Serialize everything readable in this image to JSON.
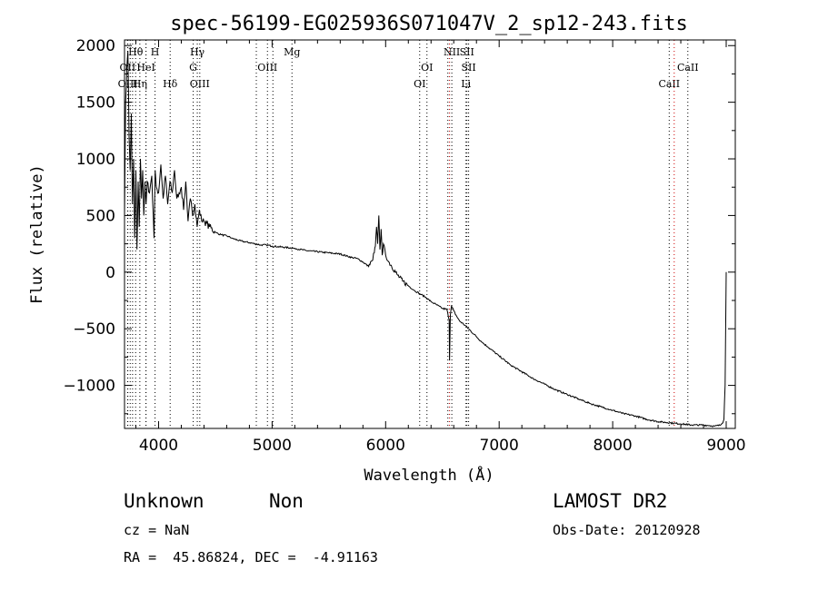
{
  "chart_data": {
    "type": "line",
    "title": "spec-56199-EG025936S071047V_2_sp12-243.fits",
    "xlabel": "Wavelength (Å)",
    "ylabel": "Flux (relative)",
    "xlim": [
      3700,
      9080
    ],
    "ylim": [
      -1380,
      2050
    ],
    "xticks": [
      4000,
      5000,
      6000,
      7000,
      8000,
      9000
    ],
    "yticks": [
      -1000,
      -500,
      0,
      500,
      1000,
      1500,
      2000
    ],
    "grid": false,
    "legend": "none",
    "series": [
      {
        "color": "#000000",
        "x": [
          3700,
          3710,
          3720,
          3730,
          3740,
          3750,
          3760,
          3770,
          3780,
          3790,
          3800,
          3810,
          3820,
          3830,
          3840,
          3850,
          3860,
          3870,
          3880,
          3890,
          3900,
          3920,
          3940,
          3960,
          3970,
          3980,
          4000,
          4020,
          4040,
          4060,
          4080,
          4100,
          4120,
          4140,
          4160,
          4180,
          4200,
          4220,
          4240,
          4260,
          4280,
          4300,
          4320,
          4340,
          4360,
          4380,
          4400,
          4450,
          4500,
          4550,
          4600,
          4650,
          4700,
          4750,
          4800,
          4850,
          4900,
          4950,
          5000,
          5100,
          5200,
          5300,
          5400,
          5500,
          5600,
          5700,
          5750,
          5800,
          5850,
          5880,
          5900,
          5910,
          5920,
          5930,
          5940,
          5950,
          5960,
          5970,
          5980,
          6000,
          6020,
          6050,
          6100,
          6150,
          6200,
          6250,
          6300,
          6350,
          6400,
          6450,
          6500,
          6540,
          6550,
          6560,
          6563,
          6570,
          6580,
          6600,
          6620,
          6650,
          6700,
          6750,
          6800,
          6850,
          6900,
          6950,
          7000,
          7100,
          7200,
          7300,
          7400,
          7500,
          7600,
          7700,
          7800,
          7900,
          8000,
          8100,
          8200,
          8300,
          8400,
          8500,
          8600,
          8700,
          8800,
          8850,
          8900,
          8950,
          8970,
          8980,
          8990,
          9000
        ],
        "y": [
          500,
          1500,
          1800,
          1950,
          1200,
          900,
          1400,
          600,
          1000,
          300,
          900,
          200,
          800,
          400,
          1000,
          650,
          900,
          500,
          800,
          600,
          800,
          700,
          850,
          300,
          900,
          750,
          700,
          950,
          650,
          850,
          600,
          800,
          700,
          900,
          650,
          700,
          750,
          550,
          800,
          450,
          650,
          500,
          600,
          400,
          550,
          450,
          450,
          400,
          350,
          330,
          320,
          300,
          280,
          270,
          260,
          250,
          240,
          240,
          230,
          220,
          210,
          190,
          180,
          170,
          160,
          130,
          120,
          90,
          50,
          100,
          170,
          230,
          400,
          250,
          500,
          200,
          380,
          150,
          250,
          150,
          100,
          60,
          -20,
          -80,
          -120,
          -160,
          -190,
          -220,
          -260,
          -290,
          -320,
          -330,
          -380,
          -420,
          -780,
          -380,
          -300,
          -340,
          -380,
          -430,
          -470,
          -520,
          -570,
          -620,
          -660,
          -700,
          -740,
          -820,
          -880,
          -940,
          -990,
          -1040,
          -1080,
          -1120,
          -1160,
          -1190,
          -1220,
          -1250,
          -1270,
          -1300,
          -1320,
          -1330,
          -1340,
          -1350,
          -1350,
          -1355,
          -1360,
          -1350,
          -1330,
          -1300,
          -1000,
          0
        ]
      }
    ],
    "spectral_lines": [
      {
        "label": "Hθ",
        "x": 3798,
        "color": "#000000",
        "row": 1
      },
      {
        "label": "H",
        "x": 3969,
        "color": "#000000",
        "row": 1
      },
      {
        "label": "Hγ",
        "x": 4341,
        "color": "#000000",
        "row": 1
      },
      {
        "label": "Mg",
        "x": 5175,
        "color": "#000000",
        "row": 1
      },
      {
        "label": "NII",
        "x": 6583,
        "color": "#000000",
        "row": 1
      },
      {
        "label": "SII",
        "x": 6716,
        "color": "#000000",
        "row": 1
      },
      {
        "label": "OII",
        "x": 3727,
        "color": "#000000",
        "row": 2
      },
      {
        "label": "HeI",
        "x": 3889,
        "color": "#000000",
        "row": 2
      },
      {
        "label": "G",
        "x": 4305,
        "color": "#000000",
        "row": 2
      },
      {
        "label": "OIII",
        "x": 4959,
        "color": "#000000",
        "row": 2
      },
      {
        "label": "OI",
        "x": 6364,
        "color": "#000000",
        "row": 2
      },
      {
        "label": "SII",
        "x": 6731,
        "color": "#000000",
        "row": 2
      },
      {
        "label": "CaII",
        "x": 8662,
        "color": "#000000",
        "row": 2
      },
      {
        "label": "OIII",
        "x": 3729,
        "color": "#000000",
        "row": 3
      },
      {
        "label": "Hη",
        "x": 3835,
        "color": "#000000",
        "row": 3
      },
      {
        "label": "Hδ",
        "x": 4102,
        "color": "#000000",
        "row": 3
      },
      {
        "label": "OIII",
        "x": 4363,
        "color": "#000000",
        "row": 3
      },
      {
        "label": "OI",
        "x": 6300,
        "color": "#000000",
        "row": 3
      },
      {
        "label": "Li",
        "x": 6708,
        "color": "#000000",
        "row": 3
      },
      {
        "label": "CaII",
        "x": 8498,
        "color": "#000000",
        "row": 3
      }
    ],
    "extra_dotted_lines": [
      {
        "x": 3750,
        "color": "#000000"
      },
      {
        "x": 3771,
        "color": "#000000"
      },
      {
        "x": 3889,
        "color": "#000000"
      },
      {
        "x": 4861,
        "color": "#000000"
      },
      {
        "x": 5007,
        "color": "#000000"
      },
      {
        "x": 6548,
        "color": "#000000"
      },
      {
        "x": 6563,
        "color": "#cc0000"
      },
      {
        "x": 8542,
        "color": "#cc0000"
      }
    ]
  },
  "info": {
    "class": "Unknown",
    "subclass": "Non",
    "survey": "LAMOST DR2",
    "cz": "cz = NaN",
    "obs_date": "Obs-Date: 20120928",
    "coords": "RA =  45.86824, DEC =  -4.91163"
  }
}
